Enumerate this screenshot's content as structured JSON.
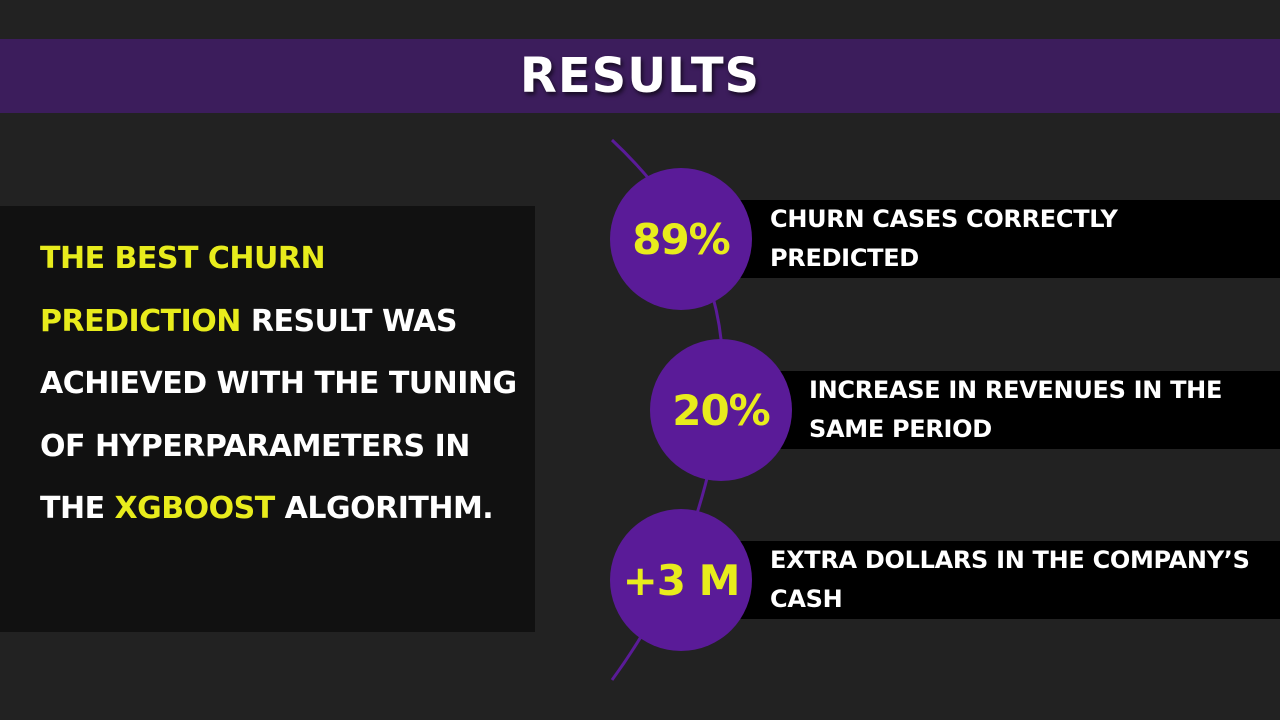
{
  "title": "RESULTS",
  "summary": {
    "highlight_1": "THE BEST CHURN PREDICTION",
    "text_1": " RESULT WAS ACHIEVED WITH THE TUNING OF HYPERPARAMETERS IN THE ",
    "highlight_2": "XGBOOST",
    "text_2": " ALGORITHM."
  },
  "results": [
    {
      "value": "89%",
      "text": "CHURN CASES CORRECTLY PREDICTED"
    },
    {
      "value": "20%",
      "text": "INCREASE IN REVENUES IN THE SAME PERIOD"
    },
    {
      "value": "+3 M",
      "text": "EXTRA DOLLARS IN THE COMPANY’S CASH"
    }
  ],
  "colors": {
    "background": "#222222",
    "title_bar": "#3c1d5c",
    "circle": "#5a1b98",
    "highlight": "#e8ec1c",
    "text": "#ffffff"
  }
}
